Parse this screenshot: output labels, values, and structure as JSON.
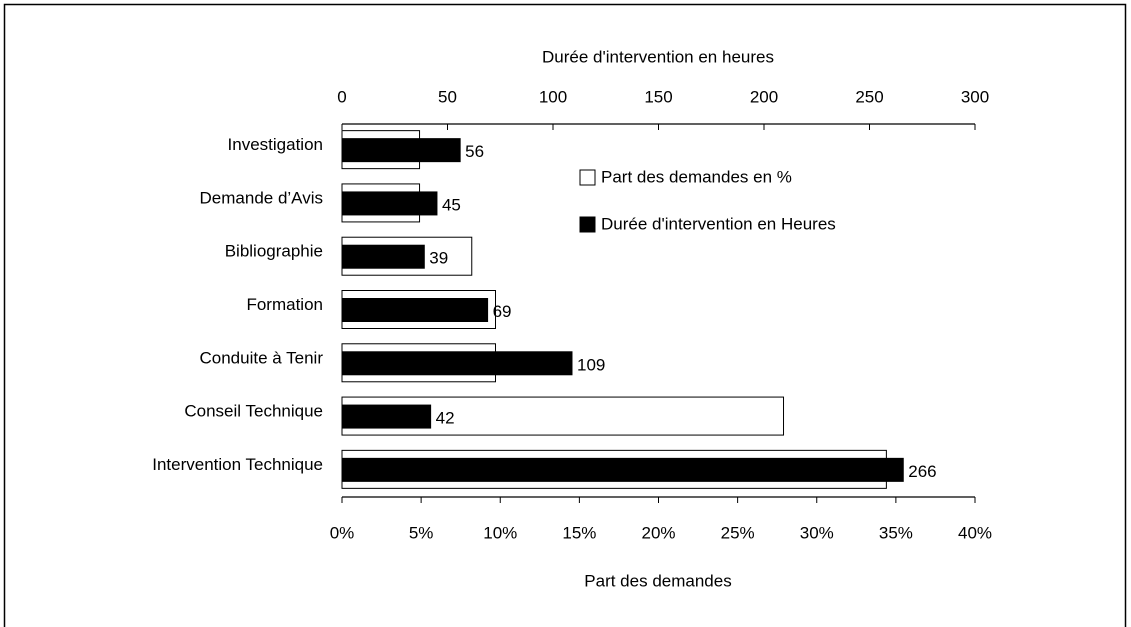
{
  "chart_data": {
    "type": "bar",
    "orientation": "horizontal",
    "x2_label": "Durée d'intervention en heures",
    "x_label": "Part des demandes",
    "categories": [
      "Investigation",
      "Demande d’Avis",
      "Bibliographie",
      "Formation",
      "Conduite à Tenir",
      "Conseil Technique",
      "Intervention Technique"
    ],
    "series": [
      {
        "name": "Part des demandes en %",
        "color": "#ffffff",
        "axis": "x",
        "values": [
          4.9,
          4.9,
          8.2,
          9.7,
          9.7,
          27.9,
          34.4
        ]
      },
      {
        "name": "Durée d'intervention en Heures",
        "color": "#000000",
        "axis": "x2",
        "values": [
          56,
          45,
          39,
          69,
          109,
          42,
          266
        ]
      }
    ],
    "xlim": [
      0,
      40
    ],
    "xticks": [
      {
        "value": 0,
        "label": "0%"
      },
      {
        "value": 5,
        "label": "5%"
      },
      {
        "value": 10,
        "label": "10%"
      },
      {
        "value": 15,
        "label": "15%"
      },
      {
        "value": 20,
        "label": "20%"
      },
      {
        "value": 25,
        "label": "25%"
      },
      {
        "value": 30,
        "label": "30%"
      },
      {
        "value": 35,
        "label": "35%"
      },
      {
        "value": 40,
        "label": "40%"
      }
    ],
    "x2lim": [
      0,
      300
    ],
    "x2ticks": [
      0,
      50,
      100,
      150,
      200,
      250,
      300
    ],
    "grid": false
  }
}
